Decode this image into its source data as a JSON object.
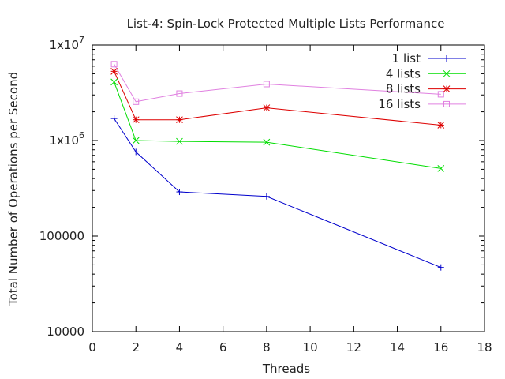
{
  "chart_data": {
    "type": "line",
    "title": "List-4: Spin-Lock Protected Multiple Lists Performance",
    "xlabel": "Threads",
    "ylabel": "Total Number of Operations per Second",
    "xlim": [
      0,
      18
    ],
    "ylim": [
      10000,
      10000000
    ],
    "yscale": "log",
    "grid": false,
    "legend_position": "top-right",
    "x_ticks": [
      0,
      2,
      4,
      6,
      8,
      10,
      12,
      14,
      16,
      18
    ],
    "y_ticks": [
      {
        "value": 10000,
        "label": "10000"
      },
      {
        "value": 100000,
        "label": "100000"
      },
      {
        "value": 1000000,
        "label": "1x10",
        "sup": "6"
      },
      {
        "value": 10000000,
        "label": "1x10",
        "sup": "7"
      }
    ],
    "x": [
      1,
      2,
      4,
      8,
      16
    ],
    "series": [
      {
        "name": "1 list",
        "color": "#0000cc",
        "marker": "plus",
        "values": [
          1700000,
          760000,
          290000,
          260000,
          47000
        ]
      },
      {
        "name": "4 lists",
        "color": "#00dd00",
        "marker": "cross",
        "values": [
          4100000,
          1000000,
          980000,
          960000,
          510000
        ]
      },
      {
        "name": "8 lists",
        "color": "#dd0000",
        "marker": "star",
        "values": [
          5300000,
          1650000,
          1650000,
          2200000,
          1450000
        ]
      },
      {
        "name": "16 lists",
        "color": "#e080e0",
        "marker": "square",
        "values": [
          6300000,
          2550000,
          3100000,
          3900000,
          3050000
        ]
      }
    ]
  }
}
